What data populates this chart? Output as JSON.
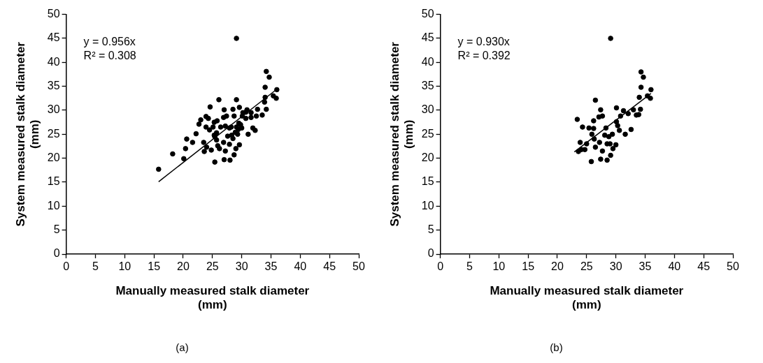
{
  "chart_data": [
    {
      "type": "scatter",
      "title": "(a)",
      "xlabel": "Manually measured stalk diameter (mm)",
      "ylabel": "System measured stalk diameter (mm)",
      "annotations": [
        "y = 0.956x",
        "R² = 0.308"
      ],
      "xlim": [
        0,
        50
      ],
      "xticks": [
        0,
        5,
        10,
        15,
        20,
        25,
        30,
        35,
        40,
        45,
        50
      ],
      "ylim": [
        0,
        50
      ],
      "yticks": [
        0,
        5,
        10,
        15,
        20,
        25,
        30,
        35,
        40,
        45,
        50
      ],
      "grid": false,
      "legend": false,
      "marker": "circle",
      "series": [
        {
          "type": "scatter",
          "color": "#000000",
          "x": [
            15.8,
            18.2,
            20.1,
            20.4,
            20.6,
            21.6,
            22.2,
            22.7,
            23.0,
            23.9,
            24.3,
            24.6,
            23.5,
            23.6,
            24.0,
            23.9,
            24.5,
            24.8,
            25.1,
            25.3,
            25.8,
            25.4,
            25.7,
            25.9,
            26.2,
            25.4,
            26.1,
            26.9,
            26.9,
            27.4,
            27.0,
            27.2,
            27.2,
            27.0,
            27.6,
            27.9,
            28.0,
            28.2,
            28.5,
            28.5,
            28.7,
            28.7,
            28.9,
            29.0,
            29.1,
            29.1,
            29.3,
            29.6,
            29.6,
            29.8,
            30.0,
            30.1,
            30.2,
            30.7,
            30.9,
            31.1,
            31.6,
            31.9,
            32.3,
            32.5,
            32.7,
            33.5,
            33.9,
            34.0,
            34.0,
            34.2,
            34.2,
            34.7,
            35.4,
            35.9,
            36.0,
            25.3,
            26.4,
            27.9,
            28.3,
            29.1,
            29.5,
            29.4,
            30.7,
            31.6,
            25.7
          ],
          "values": [
            17.7,
            20.9,
            19.9,
            22.0,
            24.0,
            23.3,
            25.1,
            27.1,
            28.0,
            28.7,
            28.3,
            30.7,
            23.3,
            21.4,
            22.3,
            26.5,
            25.9,
            21.7,
            26.5,
            27.5,
            27.8,
            24.5,
            23.8,
            22.6,
            22.0,
            19.2,
            32.2,
            23.3,
            28.5,
            28.8,
            30.1,
            26.7,
            21.5,
            19.7,
            24.6,
            22.9,
            19.6,
            26.5,
            30.2,
            24.1,
            28.8,
            20.7,
            25.4,
            22.0,
            32.2,
            45.0,
            25.0,
            22.8,
            30.6,
            27.0,
            26.3,
            28.8,
            29.5,
            28.3,
            30.1,
            25.0,
            28.5,
            26.3,
            25.8,
            28.8,
            30.2,
            29.0,
            31.7,
            34.8,
            32.7,
            38.1,
            30.2,
            36.9,
            33.0,
            32.5,
            34.3,
            24.8,
            26.5,
            26.3,
            24.8,
            26.5,
            27.3,
            26.0,
            29.6,
            29.5,
            25.3
          ]
        },
        {
          "type": "line",
          "color": "#000000",
          "line_style": "solid",
          "marker": "none",
          "x": [
            15.8,
            36.0
          ],
          "values": [
            15.1,
            34.4
          ]
        }
      ]
    },
    {
      "type": "scatter",
      "title": "(b)",
      "xlabel": "Manually measured stalk diameter (mm)",
      "ylabel": "System measured stalk diameter (mm)",
      "annotations": [
        "y = 0.930x",
        "R² = 0.392"
      ],
      "xlim": [
        0,
        50
      ],
      "xticks": [
        0,
        5,
        10,
        15,
        20,
        25,
        30,
        35,
        40,
        45,
        50
      ],
      "ylim": [
        0,
        50
      ],
      "yticks": [
        0,
        5,
        10,
        15,
        20,
        25,
        30,
        35,
        40,
        45,
        50
      ],
      "grid": false,
      "legend": false,
      "marker": "circle",
      "series": [
        {
          "type": "scatter",
          "color": "#000000",
          "x": [
            34.3,
            34.3,
            26.5,
            23.4,
            27.4,
            27.7,
            27.1,
            30.1,
            31.3,
            30.8,
            32.1,
            33.0,
            33.9,
            26.2,
            24.3,
            25.4,
            26.2,
            25.9,
            28.3,
            30.1,
            30.3,
            30.6,
            32.6,
            31.6,
            28.1,
            28.8,
            29.4,
            26.3,
            23.9,
            25.0,
            27.2,
            29.0,
            24.1,
            24.7,
            26.5,
            27.7,
            28.5,
            30.0,
            29.5,
            29.1,
            25.8,
            27.4,
            28.5,
            23.6,
            29.1,
            34.7,
            35.4,
            35.9,
            36.0,
            34.0,
            34.2,
            33.5
          ],
          "values": [
            38.0,
            34.8,
            32.1,
            28.1,
            30.1,
            28.8,
            28.6,
            30.5,
            29.9,
            28.8,
            29.3,
            30.1,
            29.1,
            27.8,
            26.5,
            26.3,
            26.2,
            25.0,
            26.3,
            27.6,
            26.8,
            25.8,
            26.0,
            25.0,
            24.8,
            24.5,
            25.0,
            24.0,
            23.3,
            23.0,
            23.3,
            23.0,
            21.8,
            21.8,
            22.3,
            21.5,
            23.0,
            22.8,
            22.0,
            20.6,
            19.3,
            19.8,
            19.6,
            21.4,
            45.0,
            36.9,
            33.0,
            32.5,
            34.3,
            32.7,
            30.2,
            29.0
          ]
        },
        {
          "type": "line",
          "color": "#000000",
          "line_style": "solid",
          "marker": "none",
          "x": [
            22.9,
            36.0
          ],
          "values": [
            21.3,
            33.5
          ]
        }
      ]
    }
  ]
}
